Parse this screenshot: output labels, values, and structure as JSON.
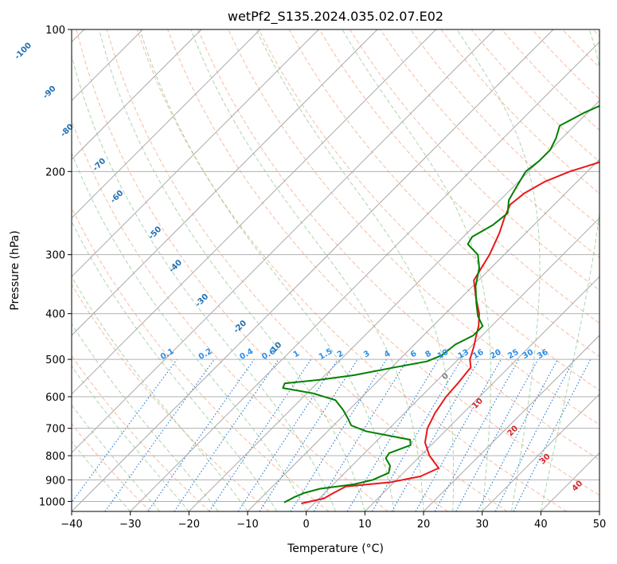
{
  "chart_data": {
    "type": "line",
    "title": "wetPf2_S135.2024.035.02.07.E02",
    "xlabel": "Temperature (°C)",
    "ylabel": "Pressure (hPa)",
    "xlim": [
      -40,
      50
    ],
    "ylim": [
      1050,
      100
    ],
    "y_scale": "log",
    "x_ticks": [
      -40,
      -30,
      -20,
      -10,
      0,
      10,
      20,
      30,
      40,
      50
    ],
    "x_tick_labels": [
      "−40",
      "−30",
      "−20",
      "−10",
      "0",
      "10",
      "20",
      "30",
      "40",
      "50"
    ],
    "y_ticks": [
      1000,
      900,
      800,
      700,
      600,
      500,
      400,
      300,
      200,
      100
    ],
    "y_tick_labels": [
      "1000",
      "900",
      "800",
      "700",
      "600",
      "500",
      "400",
      "300",
      "200",
      "100"
    ],
    "grid": true,
    "series": [
      {
        "color": "#e8191c",
        "points": [
          [
            1010,
            -2.2
          ],
          [
            985,
            0.8
          ],
          [
            960,
            1.5
          ],
          [
            930,
            2.5
          ],
          [
            910,
            9.5
          ],
          [
            885,
            13.5
          ],
          [
            850,
            15.2
          ],
          [
            800,
            11.5
          ],
          [
            750,
            8.5
          ],
          [
            700,
            6.5
          ],
          [
            650,
            5.2
          ],
          [
            600,
            4.3
          ],
          [
            560,
            4.0
          ],
          [
            520,
            3.5
          ],
          [
            500,
            2.0
          ],
          [
            470,
            0.5
          ],
          [
            445,
            -1.0
          ],
          [
            425,
            -2.2
          ],
          [
            400,
            -4.2
          ],
          [
            370,
            -7.5
          ],
          [
            340,
            -10.8
          ],
          [
            300,
            -12.5
          ],
          [
            270,
            -14.5
          ],
          [
            250,
            -16.3
          ],
          [
            235,
            -17.5
          ],
          [
            222,
            -17.0
          ],
          [
            210,
            -15.5
          ],
          [
            200,
            -13.0
          ],
          [
            185,
            -7.0
          ],
          [
            170,
            1.5
          ],
          [
            160,
            6.0
          ],
          [
            150,
            10.5
          ],
          [
            140,
            13.5
          ],
          [
            125,
            16.0
          ],
          [
            115,
            18.0
          ],
          [
            105,
            21.0
          ],
          [
            100,
            23.5
          ]
        ]
      },
      {
        "color": "#008000",
        "points": [
          [
            1005,
            -5.3
          ],
          [
            980,
            -4.5
          ],
          [
            960,
            -3.5
          ],
          [
            940,
            -1.5
          ],
          [
            930,
            1.0
          ],
          [
            920,
            3.5
          ],
          [
            900,
            6.0
          ],
          [
            870,
            7.5
          ],
          [
            840,
            6.5
          ],
          [
            810,
            4.5
          ],
          [
            790,
            4.2
          ],
          [
            760,
            6.5
          ],
          [
            740,
            5.5
          ],
          [
            710,
            -3.5
          ],
          [
            690,
            -7.0
          ],
          [
            670,
            -8.5
          ],
          [
            640,
            -11.0
          ],
          [
            610,
            -14.0
          ],
          [
            590,
            -19.0
          ],
          [
            575,
            -25.0
          ],
          [
            562,
            -25.5
          ],
          [
            552,
            -20.0
          ],
          [
            540,
            -15.0
          ],
          [
            520,
            -9.5
          ],
          [
            505,
            -5.0
          ],
          [
            490,
            -3.5
          ],
          [
            465,
            -3.0
          ],
          [
            445,
            -1.5
          ],
          [
            425,
            -1.5
          ],
          [
            405,
            -4.0
          ],
          [
            380,
            -6.5
          ],
          [
            350,
            -9.5
          ],
          [
            320,
            -12.0
          ],
          [
            300,
            -14.5
          ],
          [
            285,
            -18.0
          ],
          [
            275,
            -18.5
          ],
          [
            260,
            -17.0
          ],
          [
            245,
            -16.5
          ],
          [
            230,
            -18.5
          ],
          [
            215,
            -19.5
          ],
          [
            200,
            -20.5
          ],
          [
            190,
            -20.0
          ],
          [
            180,
            -20.0
          ],
          [
            170,
            -21.0
          ],
          [
            160,
            -22.5
          ],
          [
            150,
            -20.5
          ],
          [
            140,
            -17.5
          ],
          [
            130,
            -14.5
          ],
          [
            120,
            -13.0
          ],
          [
            110,
            -11.5
          ],
          [
            100,
            -9.0
          ]
        ]
      }
    ],
    "isotherm_labels": [
      {
        "value": "-100",
        "p": 112,
        "t": -48
      },
      {
        "value": "-90",
        "p": 137,
        "t": -43.5
      },
      {
        "value": "-80",
        "p": 165,
        "t": -40.5
      },
      {
        "value": "-70",
        "p": 195,
        "t": -35
      },
      {
        "value": "-60",
        "p": 228,
        "t": -32
      },
      {
        "value": "-50",
        "p": 272,
        "t": -25.5
      },
      {
        "value": "-40",
        "p": 320,
        "t": -22
      },
      {
        "value": "-30",
        "p": 378,
        "t": -17.5
      },
      {
        "value": "-20",
        "p": 430,
        "t": -11
      },
      {
        "value": "-10",
        "p": 478,
        "t": -5
      }
    ],
    "mixing_ratio_labels": [
      {
        "value": "0.1",
        "t": -23.5
      },
      {
        "value": "0.2",
        "t": -17
      },
      {
        "value": "0.4",
        "t": -10
      },
      {
        "value": "0.6",
        "t": -6.2
      },
      {
        "value": "1",
        "t": -1.5
      },
      {
        "value": "1.5",
        "t": 3.5
      },
      {
        "value": "2",
        "t": 6
      },
      {
        "value": "3",
        "t": 10.5
      },
      {
        "value": "4",
        "t": 14
      },
      {
        "value": "6",
        "t": 18.5
      },
      {
        "value": "8",
        "t": 21
      },
      {
        "value": "10",
        "t": 23.5
      },
      {
        "value": "13",
        "t": 27
      },
      {
        "value": "16",
        "t": 29.5
      },
      {
        "value": "20",
        "t": 32.5
      },
      {
        "value": "25",
        "t": 35.5
      },
      {
        "value": "30",
        "t": 38
      },
      {
        "value": "36",
        "t": 40.5
      }
    ],
    "moist_adiabat_labels": [
      {
        "value": "0",
        "p": 548,
        "x": 24
      },
      {
        "value": "10",
        "p": 625,
        "x": 29.5
      },
      {
        "value": "20",
        "p": 715,
        "x": 35.5
      },
      {
        "value": "30",
        "p": 820,
        "x": 41
      },
      {
        "value": "40",
        "p": 935,
        "x": 46.5
      }
    ]
  }
}
